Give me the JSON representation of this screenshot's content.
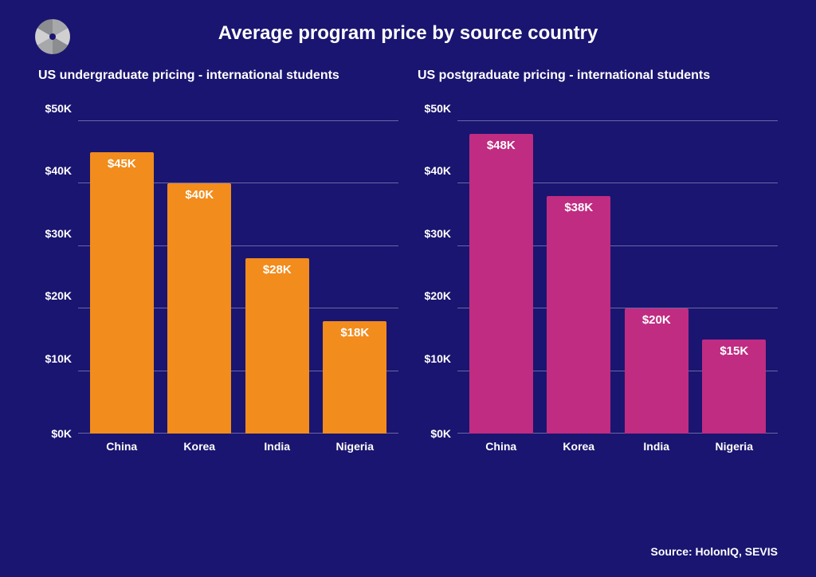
{
  "title": "Average program price by source country",
  "source_text": "Source: HolonIQ, SEVIS",
  "background_color": "#1a1570",
  "grid_color": "#6a66a8",
  "text_color": "#ffffff",
  "logo": {
    "pie_colors": [
      "#8c8d90",
      "#a7a8aa",
      "#d0d0d0",
      "#8c8d90",
      "#a7a8aa",
      "#d0d0d0"
    ],
    "accent_triangle_color": "#f28c1c"
  },
  "y_axis": {
    "min": 0,
    "max": 50,
    "ticks": [
      0,
      10,
      20,
      30,
      40,
      50
    ],
    "tick_labels": [
      "$0K",
      "$10K",
      "$20K",
      "$30K",
      "$40K",
      "$50K"
    ]
  },
  "charts": [
    {
      "subtitle": "US undergraduate pricing - international students",
      "type": "bar",
      "bar_color": "#f28c1c",
      "categories": [
        "China",
        "Korea",
        "India",
        "Nigeria"
      ],
      "values": [
        45,
        40,
        28,
        18
      ],
      "value_labels": [
        "$45K",
        "$40K",
        "$28K",
        "$18K"
      ]
    },
    {
      "subtitle": "US postgraduate pricing - international students",
      "type": "bar",
      "bar_color": "#c02c82",
      "categories": [
        "China",
        "Korea",
        "India",
        "Nigeria"
      ],
      "values": [
        48,
        38,
        20,
        15
      ],
      "value_labels": [
        "$48K",
        "$38K",
        "$20K",
        "$15K"
      ]
    }
  ]
}
